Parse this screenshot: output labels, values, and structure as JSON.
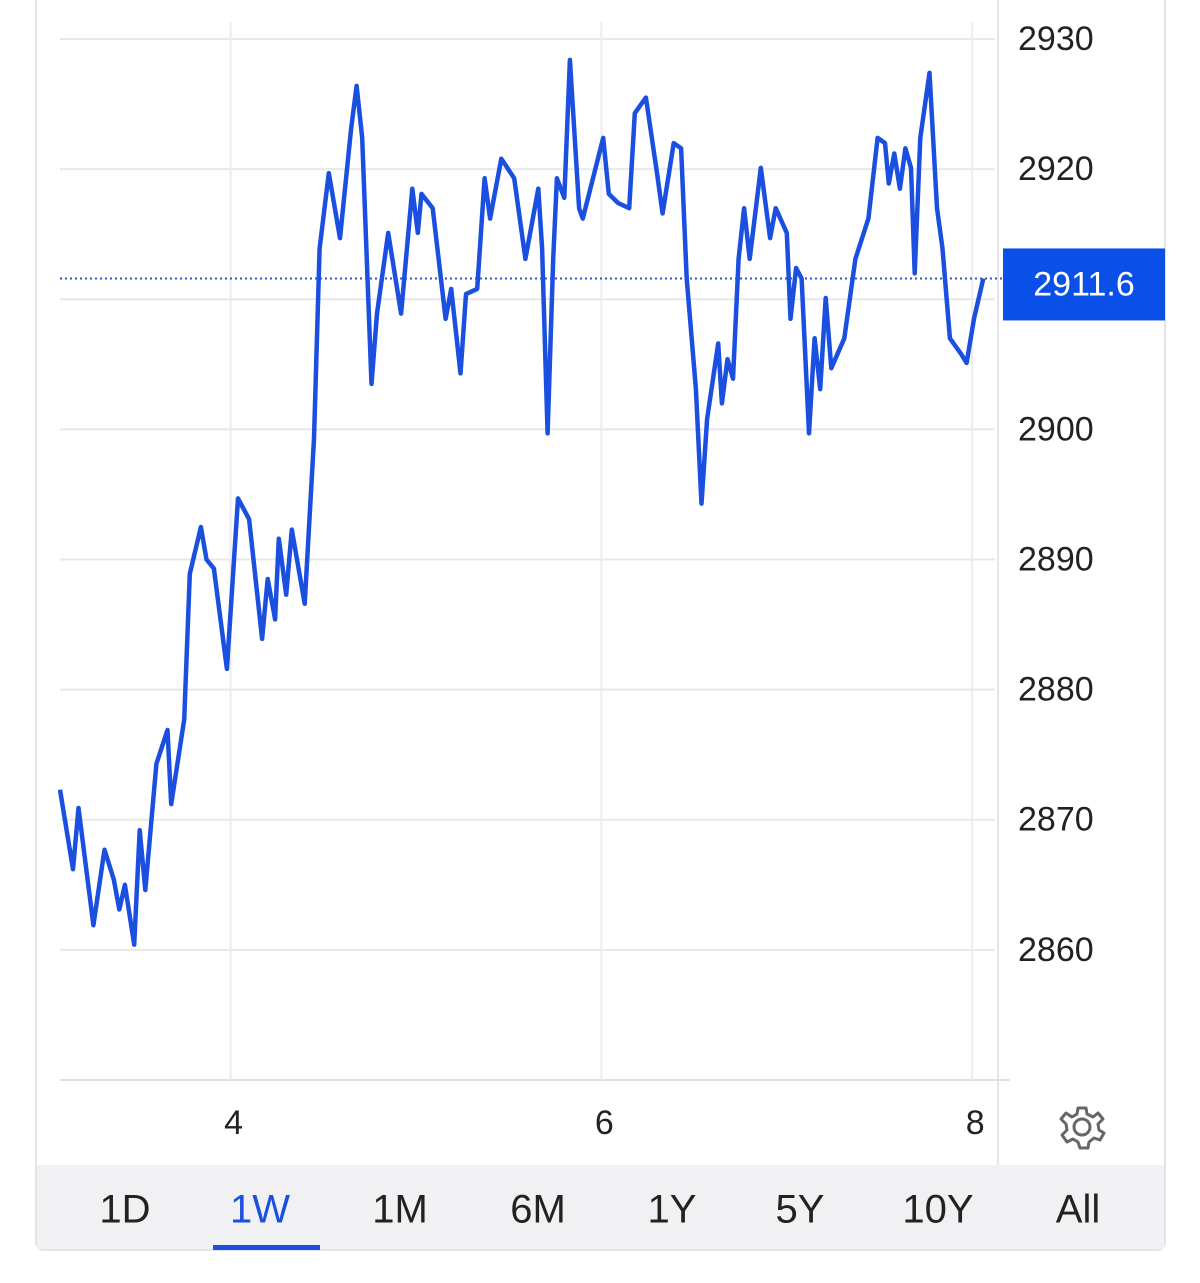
{
  "chart_data": {
    "type": "line",
    "color": "#1a4fe0",
    "x": [
      3.08,
      3.15,
      3.18,
      3.26,
      3.32,
      3.37,
      3.4,
      3.43,
      3.48,
      3.51,
      3.54,
      3.6,
      3.66,
      3.68,
      3.75,
      3.78,
      3.84,
      3.87,
      3.91,
      3.98,
      4.04,
      4.1,
      4.17,
      4.2,
      4.24,
      4.26,
      4.3,
      4.33,
      4.4,
      4.45,
      4.48,
      4.53,
      4.59,
      4.65,
      4.68,
      4.71,
      4.76,
      4.79,
      4.85,
      4.92,
      4.98,
      5.01,
      5.03,
      5.09,
      5.16,
      5.19,
      5.24,
      5.27,
      5.33,
      5.37,
      5.4,
      5.46,
      5.53,
      5.59,
      5.66,
      5.68,
      5.71,
      5.74,
      5.76,
      5.8,
      5.83,
      5.88,
      5.9,
      6.01,
      6.04,
      6.09,
      6.15,
      6.18,
      6.24,
      6.3,
      6.33,
      6.39,
      6.43,
      6.46,
      6.51,
      6.54,
      6.57,
      6.63,
      6.65,
      6.68,
      6.71,
      6.74,
      6.77,
      6.8,
      6.86,
      6.91,
      6.94,
      7.0,
      7.02,
      7.05,
      7.08,
      7.12,
      7.15,
      7.18,
      7.21,
      7.24,
      7.31,
      7.37,
      7.44,
      7.49,
      7.53,
      7.55,
      7.58,
      7.61,
      7.64,
      7.67,
      7.69,
      7.72,
      7.77,
      7.81,
      7.84,
      7.88,
      7.94,
      7.97,
      8.01,
      8.06
    ],
    "values": [
      2872.3,
      2866.2,
      2870.9,
      2861.9,
      2867.7,
      2865.4,
      2863.1,
      2865.0,
      2860.4,
      2869.2,
      2864.6,
      2874.3,
      2876.9,
      2871.2,
      2877.7,
      2888.9,
      2892.5,
      2890.0,
      2889.3,
      2881.6,
      2894.7,
      2893.1,
      2883.9,
      2888.5,
      2885.4,
      2891.6,
      2887.3,
      2892.3,
      2886.6,
      2899.3,
      2913.9,
      2919.7,
      2914.7,
      2923.1,
      2926.4,
      2922.4,
      2903.5,
      2908.9,
      2915.1,
      2908.9,
      2918.5,
      2915.1,
      2918.1,
      2917.0,
      2908.5,
      2910.8,
      2904.3,
      2910.4,
      2910.8,
      2919.3,
      2916.2,
      2920.8,
      2919.3,
      2913.1,
      2918.5,
      2913.9,
      2899.7,
      2913.1,
      2919.3,
      2917.8,
      2928.4,
      2917.0,
      2916.2,
      2922.4,
      2918.1,
      2917.4,
      2917.0,
      2924.3,
      2925.5,
      2919.7,
      2916.6,
      2922.0,
      2921.6,
      2911.6,
      2903.1,
      2894.3,
      2900.8,
      2906.6,
      2902.0,
      2905.4,
      2903.9,
      2913.1,
      2917.0,
      2913.1,
      2920.1,
      2914.7,
      2917.0,
      2915.1,
      2908.5,
      2912.4,
      2911.6,
      2899.7,
      2907.0,
      2903.1,
      2910.1,
      2904.7,
      2907.0,
      2913.1,
      2916.2,
      2922.4,
      2922.0,
      2918.9,
      2921.2,
      2918.5,
      2921.6,
      2920.1,
      2912.0,
      2922.4,
      2927.4,
      2917.0,
      2913.9,
      2907.0,
      2905.8,
      2905.1,
      2908.5,
      2911.6
    ],
    "xlim": [
      3.08,
      8.15
    ],
    "xticks": [
      4,
      6,
      8
    ],
    "ylim": [
      2850,
      2933
    ],
    "yticks": [
      2860,
      2870,
      2880,
      2890,
      2900,
      2910,
      2920,
      2930
    ],
    "grid": true,
    "last_value": 2911.6
  },
  "range_tabs": {
    "labels": [
      "1D",
      "1W",
      "1M",
      "6M",
      "1Y",
      "5Y",
      "10Y",
      "All"
    ],
    "selected": "1W"
  }
}
